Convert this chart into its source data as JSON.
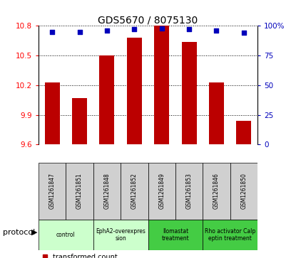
{
  "title": "GDS5670 / 8075130",
  "samples": [
    "GSM1261847",
    "GSM1261851",
    "GSM1261848",
    "GSM1261852",
    "GSM1261849",
    "GSM1261853",
    "GSM1261846",
    "GSM1261850"
  ],
  "transformed_counts": [
    10.23,
    10.07,
    10.5,
    10.68,
    10.8,
    10.64,
    10.23,
    9.84
  ],
  "percentile_ranks": [
    95,
    95,
    96,
    97,
    98,
    97,
    96,
    94
  ],
  "ylim_left": [
    9.6,
    10.8
  ],
  "yticks_left": [
    9.6,
    9.9,
    10.2,
    10.5,
    10.8
  ],
  "yticks_right": [
    0,
    25,
    50,
    75,
    100
  ],
  "ylim_right": [
    0,
    100
  ],
  "bar_color": "#bb0000",
  "dot_color": "#0000bb",
  "protocols": [
    {
      "label": "control",
      "indices": [
        0,
        1
      ],
      "color": "#ccffcc"
    },
    {
      "label": "EphA2-overexpres\nsion",
      "indices": [
        2,
        3
      ],
      "color": "#ccffcc"
    },
    {
      "label": "Ilomastat\ntreatment",
      "indices": [
        4,
        5
      ],
      "color": "#44cc44"
    },
    {
      "label": "Rho activator Calp\neptin treatment",
      "indices": [
        6,
        7
      ],
      "color": "#44cc44"
    }
  ],
  "gray_color": "#d0d0d0",
  "bar_width": 0.55,
  "protocol_label": "protocol"
}
